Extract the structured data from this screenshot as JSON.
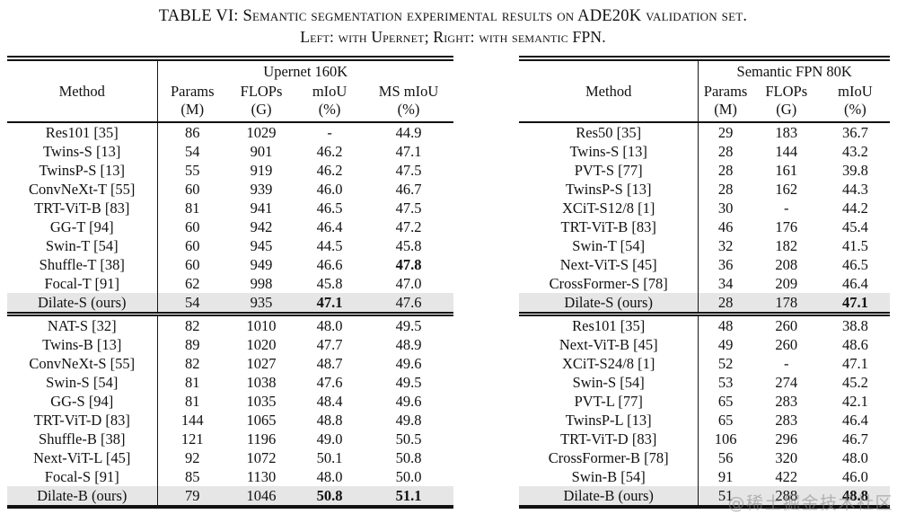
{
  "title": {
    "line1": "TABLE VI: Semantic segmentation experimental results on ADE20K validation set.",
    "line2": "Left: with Upernet; Right: with semantic FPN."
  },
  "watermark": "@稀土掘金技术社区",
  "colors": {
    "highlight_row": "#e6e6e6",
    "rule": "#111111",
    "text": "#111111",
    "watermark": "#8f8f8f"
  },
  "tables": [
    {
      "id": "upernet-table",
      "span_header": "Upernet 160K",
      "method_header": "Method",
      "col_widths": [
        "33.6%",
        "15.7%",
        "15.3%",
        "15.3%",
        "20.1%"
      ],
      "columns": [
        {
          "label": "Params",
          "unit": "(M)"
        },
        {
          "label": "FLOPs",
          "unit": "(G)"
        },
        {
          "label": "mIoU",
          "unit": "(%)"
        },
        {
          "label": "MS mIoU",
          "unit": "(%)"
        }
      ],
      "groups": [
        {
          "rows": [
            {
              "cells": [
                "Res101 [35]",
                "86",
                "1029",
                "-",
                "44.9"
              ]
            },
            {
              "cells": [
                "Twins-S [13]",
                "54",
                "901",
                "46.2",
                "47.1"
              ]
            },
            {
              "cells": [
                "TwinsP-S [13]",
                "55",
                "919",
                "46.2",
                "47.5"
              ]
            },
            {
              "cells": [
                "ConvNeXt-T [55]",
                "60",
                "939",
                "46.0",
                "46.7"
              ]
            },
            {
              "cells": [
                "TRT-ViT-B [83]",
                "81",
                "941",
                "46.5",
                "47.5"
              ]
            },
            {
              "cells": [
                "GG-T [94]",
                "60",
                "942",
                "46.4",
                "47.2"
              ]
            },
            {
              "cells": [
                "Swin-T [54]",
                "60",
                "945",
                "44.5",
                "45.8"
              ]
            },
            {
              "cells": [
                "Shuffle-T [38]",
                "60",
                "949",
                "46.6",
                "47.8"
              ],
              "bold": [
                4
              ]
            },
            {
              "cells": [
                "Focal-T [91]",
                "62",
                "998",
                "45.8",
                "47.0"
              ]
            },
            {
              "cells": [
                "Dilate-S (ours)",
                "54",
                "935",
                "47.1",
                "47.6"
              ],
              "bold": [
                3
              ],
              "highlight": true
            }
          ]
        },
        {
          "rows": [
            {
              "cells": [
                "NAT-S [32]",
                "82",
                "1010",
                "48.0",
                "49.5"
              ]
            },
            {
              "cells": [
                "Twins-B [13]",
                "89",
                "1020",
                "47.7",
                "48.9"
              ]
            },
            {
              "cells": [
                "ConvNeXt-S [55]",
                "82",
                "1027",
                "48.7",
                "49.6"
              ]
            },
            {
              "cells": [
                "Swin-S [54]",
                "81",
                "1038",
                "47.6",
                "49.5"
              ]
            },
            {
              "cells": [
                "GG-S [94]",
                "81",
                "1035",
                "48.4",
                "49.6"
              ]
            },
            {
              "cells": [
                "TRT-ViT-D [83]",
                "144",
                "1065",
                "48.8",
                "49.8"
              ]
            },
            {
              "cells": [
                "Shuffle-B [38]",
                "121",
                "1196",
                "49.0",
                "50.5"
              ]
            },
            {
              "cells": [
                "Next-ViT-L [45]",
                "92",
                "1072",
                "50.1",
                "50.8"
              ]
            },
            {
              "cells": [
                "Focal-S [91]",
                "85",
                "1130",
                "48.0",
                "50.0"
              ]
            },
            {
              "cells": [
                "Dilate-B (ours)",
                "79",
                "1046",
                "50.8",
                "51.1"
              ],
              "bold": [
                3,
                4
              ],
              "highlight": true
            }
          ]
        }
      ]
    },
    {
      "id": "fpn-table",
      "span_header": "Semantic FPN 80K",
      "method_header": "Method",
      "col_widths": [
        "48.4%",
        "14.5%",
        "18.4%",
        "18.7%"
      ],
      "columns": [
        {
          "label": "Params",
          "unit": "(M)"
        },
        {
          "label": "FLOPs",
          "unit": "(G)"
        },
        {
          "label": "mIoU",
          "unit": "(%)"
        }
      ],
      "groups": [
        {
          "rows": [
            {
              "cells": [
                "Res50 [35]",
                "29",
                "183",
                "36.7"
              ]
            },
            {
              "cells": [
                "Twins-S [13]",
                "28",
                "144",
                "43.2"
              ]
            },
            {
              "cells": [
                "PVT-S [77]",
                "28",
                "161",
                "39.8"
              ]
            },
            {
              "cells": [
                "TwinsP-S [13]",
                "28",
                "162",
                "44.3"
              ]
            },
            {
              "cells": [
                "XCiT-S12/8 [1]",
                "30",
                "-",
                "44.2"
              ]
            },
            {
              "cells": [
                "TRT-ViT-B [83]",
                "46",
                "176",
                "45.4"
              ]
            },
            {
              "cells": [
                "Swin-T [54]",
                "32",
                "182",
                "41.5"
              ]
            },
            {
              "cells": [
                "Next-ViT-S [45]",
                "36",
                "208",
                "46.5"
              ]
            },
            {
              "cells": [
                "CrossFormer-S [78]",
                "34",
                "209",
                "46.4"
              ]
            },
            {
              "cells": [
                "Dilate-S (ours)",
                "28",
                "178",
                "47.1"
              ],
              "bold": [
                3
              ],
              "highlight": true
            }
          ]
        },
        {
          "rows": [
            {
              "cells": [
                "Res101 [35]",
                "48",
                "260",
                "38.8"
              ]
            },
            {
              "cells": [
                "Next-ViT-B [45]",
                "49",
                "260",
                "48.6"
              ]
            },
            {
              "cells": [
                "XCiT-S24/8 [1]",
                "52",
                "-",
                "47.1"
              ]
            },
            {
              "cells": [
                "Swin-S [54]",
                "53",
                "274",
                "45.2"
              ]
            },
            {
              "cells": [
                "PVT-L [77]",
                "65",
                "283",
                "42.1"
              ]
            },
            {
              "cells": [
                "TwinsP-L [13]",
                "65",
                "283",
                "46.4"
              ]
            },
            {
              "cells": [
                "TRT-ViT-D [83]",
                "106",
                "296",
                "46.7"
              ]
            },
            {
              "cells": [
                "CrossFormer-B [78]",
                "56",
                "320",
                "48.0"
              ]
            },
            {
              "cells": [
                "Swin-B [54]",
                "91",
                "422",
                "46.0"
              ]
            },
            {
              "cells": [
                "Dilate-B (ours)",
                "51",
                "288",
                "48.8"
              ],
              "bold": [
                3
              ],
              "highlight": true
            }
          ]
        }
      ]
    }
  ]
}
